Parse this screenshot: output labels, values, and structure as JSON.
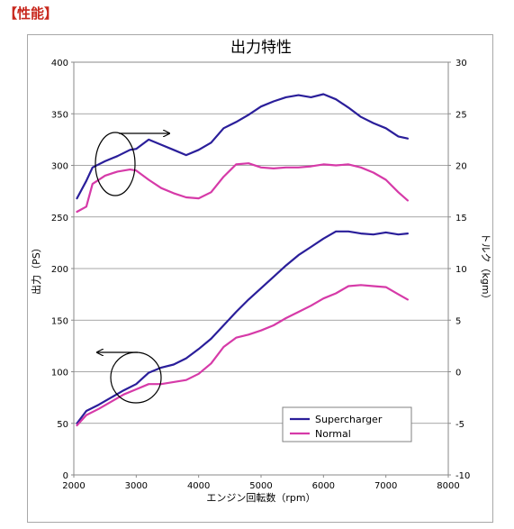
{
  "header": {
    "label": "【性能】"
  },
  "chart_data": {
    "type": "line",
    "title": "出力特性",
    "xlabel": "エンジン回転数（rpm）",
    "ylabel": "出力（PS）",
    "y2label": "トルク（kgm）",
    "xlim": [
      2000,
      8000
    ],
    "ylim": [
      0,
      400
    ],
    "y2lim": [
      -10,
      30
    ],
    "x_ticks": [
      "2000",
      "3000",
      "4000",
      "5000",
      "6000",
      "7000",
      "8000"
    ],
    "y_ticks": [
      "0",
      "50",
      "100",
      "150",
      "200",
      "250",
      "300",
      "350",
      "400"
    ],
    "y2_ticks": [
      "-10",
      "-5",
      "0",
      "5",
      "10",
      "15",
      "20",
      "25",
      "30"
    ],
    "grid": "horizontal",
    "legend_position": "bottom-right",
    "colors": {
      "supercharger": "#2a1e9a",
      "normal": "#d63aa8"
    },
    "series": [
      {
        "name": "Supercharger",
        "axis": "left",
        "quantity": "power",
        "x": [
          2050,
          2200,
          2400,
          2600,
          2800,
          3000,
          3200,
          3400,
          3600,
          3800,
          4000,
          4200,
          4400,
          4600,
          4800,
          5000,
          5200,
          5400,
          5600,
          5800,
          6000,
          6200,
          6400,
          6600,
          6800,
          7000,
          7200,
          7350
        ],
        "values": [
          50,
          62,
          68,
          75,
          82,
          88,
          99,
          104,
          107,
          113,
          122,
          132,
          145,
          158,
          170,
          181,
          192,
          203,
          213,
          221,
          229,
          236,
          236,
          234,
          233,
          235,
          233,
          234
        ]
      },
      {
        "name": "Normal",
        "axis": "left",
        "quantity": "power",
        "x": [
          2050,
          2200,
          2400,
          2600,
          2800,
          3000,
          3200,
          3400,
          3600,
          3800,
          4000,
          4200,
          4400,
          4600,
          4800,
          5000,
          5200,
          5400,
          5600,
          5800,
          6000,
          6200,
          6400,
          6600,
          6800,
          7000,
          7200,
          7350
        ],
        "values": [
          48,
          58,
          64,
          71,
          78,
          83,
          88,
          88,
          90,
          92,
          98,
          108,
          124,
          133,
          136,
          140,
          145,
          152,
          158,
          164,
          171,
          176,
          183,
          184,
          183,
          182,
          175,
          170
        ]
      },
      {
        "name": "Supercharger",
        "axis": "right",
        "quantity": "torque",
        "x": [
          2050,
          2200,
          2300,
          2500,
          2700,
          2900,
          3000,
          3200,
          3400,
          3600,
          3800,
          4000,
          4200,
          4400,
          4600,
          4800,
          5000,
          5200,
          5400,
          5600,
          5800,
          6000,
          6200,
          6400,
          6600,
          6800,
          7000,
          7200,
          7350
        ],
        "values": [
          16.8,
          18.5,
          19.8,
          20.4,
          20.9,
          21.5,
          21.6,
          22.5,
          22.0,
          21.5,
          21.0,
          21.5,
          22.2,
          23.6,
          24.2,
          24.9,
          25.7,
          26.2,
          26.6,
          26.8,
          26.6,
          26.9,
          26.4,
          25.6,
          24.7,
          24.1,
          23.6,
          22.8,
          22.6
        ]
      },
      {
        "name": "Normal",
        "axis": "right",
        "quantity": "torque",
        "x": [
          2050,
          2200,
          2300,
          2500,
          2700,
          2900,
          3000,
          3200,
          3400,
          3600,
          3800,
          4000,
          4200,
          4400,
          4600,
          4800,
          5000,
          5200,
          5400,
          5600,
          5800,
          6000,
          6200,
          6400,
          6600,
          6800,
          7000,
          7200,
          7350
        ],
        "values": [
          15.5,
          16.0,
          18.2,
          19.0,
          19.4,
          19.6,
          19.5,
          18.6,
          17.8,
          17.3,
          16.9,
          16.8,
          17.4,
          18.9,
          20.1,
          20.2,
          19.8,
          19.7,
          19.8,
          19.8,
          19.9,
          20.1,
          20.0,
          20.1,
          19.8,
          19.3,
          18.6,
          17.4,
          16.6
        ]
      }
    ]
  }
}
